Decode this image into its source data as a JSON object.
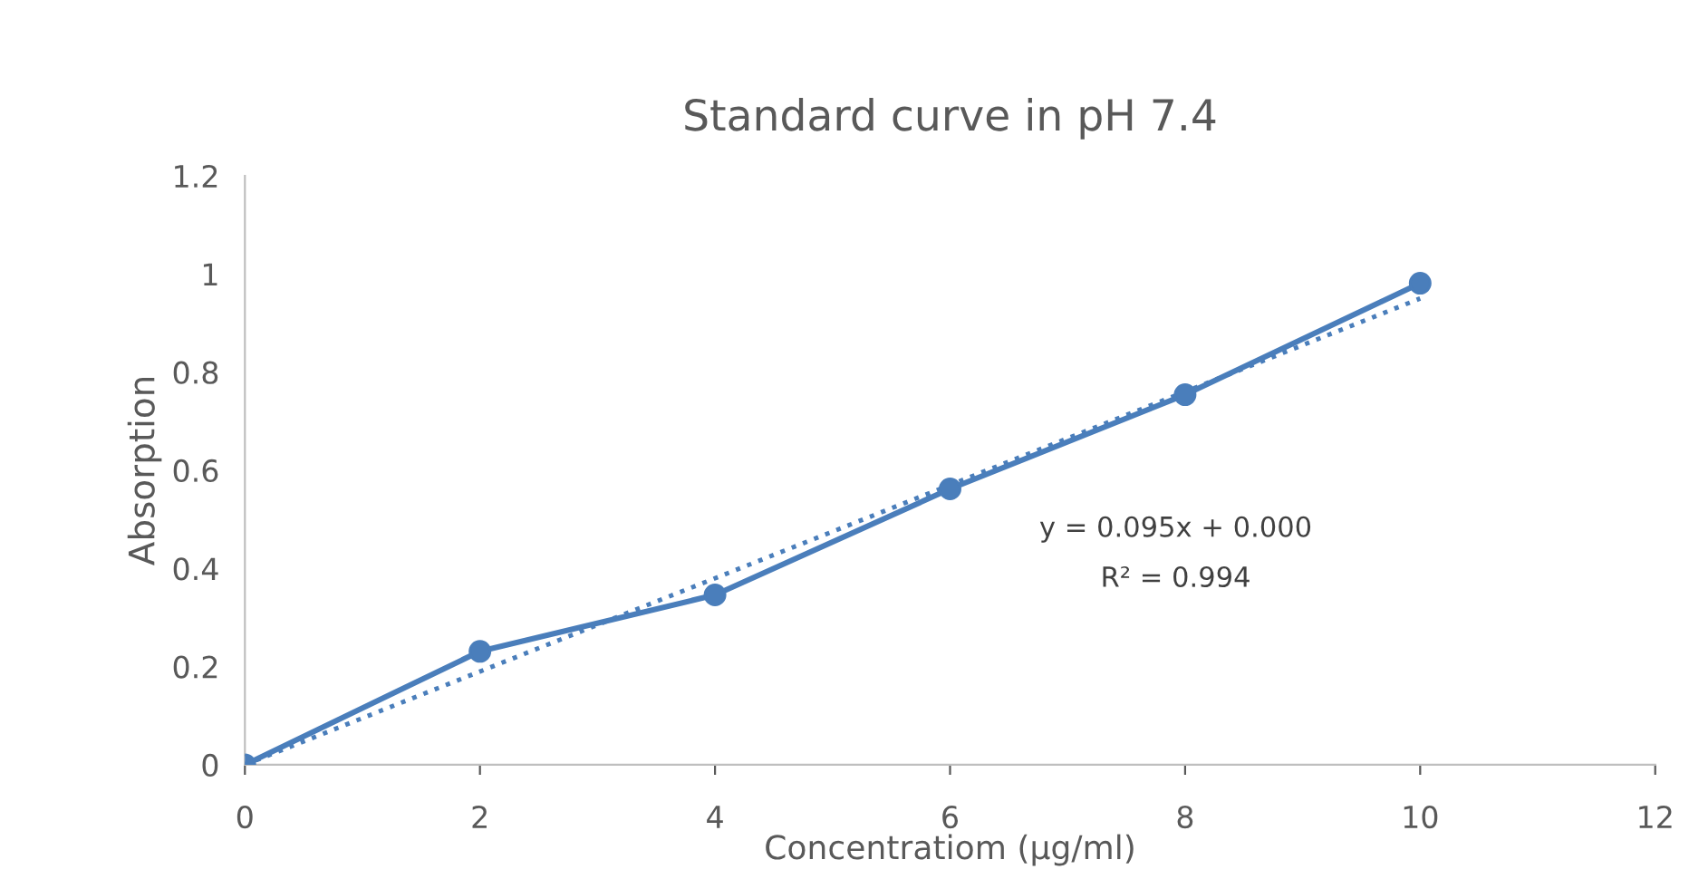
{
  "chart_data": {
    "type": "line",
    "title": "Standard curve in pH 7.4",
    "xlabel": "Concentratiom (µg/ml)",
    "ylabel": "Absorption",
    "x": [
      0,
      2,
      4,
      6,
      8,
      10
    ],
    "series": [
      {
        "color": "#4a7ebb",
        "values": [
          0,
          0.231,
          0.346,
          0.562,
          0.754,
          0.981
        ],
        "marker": "circle",
        "line_style": "solid"
      },
      {
        "type": "line",
        "x": [
          0,
          10
        ],
        "color": "#4a7ebb",
        "values": [
          0,
          0.95
        ],
        "marker": "none",
        "line_style": "dotted"
      }
    ],
    "annotations": [
      "y = 0.095x + 0.000",
      "R² = 0.994"
    ],
    "xlim": [
      0,
      12
    ],
    "xticks": [
      0,
      2,
      4,
      6,
      8,
      10,
      12
    ],
    "ylim": [
      0,
      1.2
    ],
    "yticks": [
      0,
      0.2,
      0.4,
      0.6,
      0.8,
      1,
      1.2
    ],
    "grid": false,
    "legend": false
  }
}
